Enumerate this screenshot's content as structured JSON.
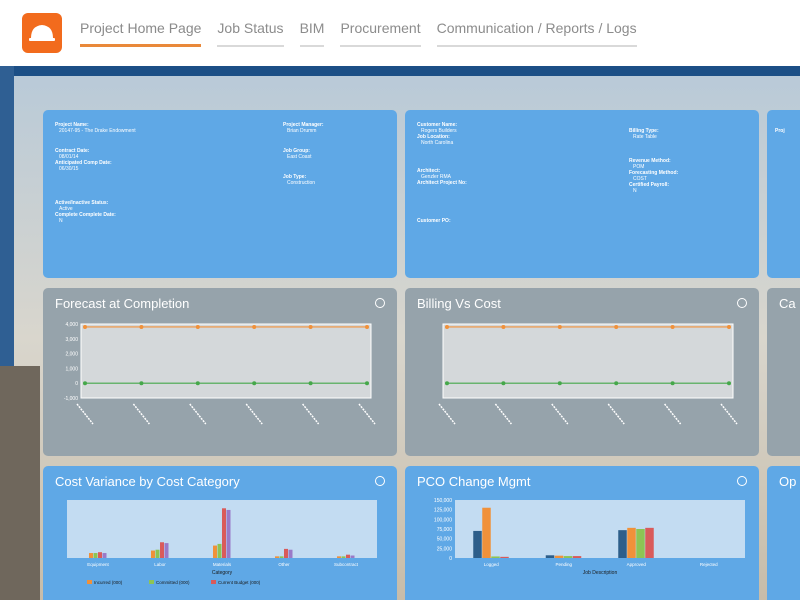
{
  "nav": {
    "logo_icon": "hard-hat-icon",
    "tabs": [
      "Project Home Page",
      "Job Status",
      "BIM",
      "Procurement",
      "Communication / Reports / Logs"
    ],
    "active_index": 0,
    "accent": "#e9893a"
  },
  "project_info": {
    "project_name_label": "Project Name:",
    "project_name_value": "20147-95 - The Drake Endowment",
    "contract_date_label": "Contract Date:",
    "contract_date_value": "08/01/14",
    "anticipated_label": "Anticipated Comp Date:",
    "anticipated_value": "06/30/15",
    "active_status_label": "Active/Inactive Status:",
    "active_status_value": "Active",
    "complete_date_label": "Complete Complete Date:",
    "complete_date_value": "N",
    "pm_label": "Project Manager:",
    "pm_value": "Brian Drumm",
    "job_group_label": "Job Group:",
    "job_group_value": "East Coast",
    "job_type_label": "Job Type:",
    "job_type_value": "Construction"
  },
  "customer_info": {
    "customer_name_label": "Customer Name:",
    "customer_name_value": "Rogers Builders",
    "job_location_label": "Job Location:",
    "job_location_value": "North Carolina",
    "architect_label": "Architect:",
    "architect_value": "Genzler RMA",
    "architect_project_label": "Architect Project No:",
    "customer_po_label": "Customer PO:",
    "billing_type_label": "Billing Type:",
    "billing_type_value": "Rate Table",
    "revenue_method_label": "Revenue Method:",
    "revenue_method_value": "POM",
    "forecasting_label": "Forecasting Method:",
    "forecasting_value": "COST",
    "certified_label": "Certified Payroll:",
    "certified_value": "N",
    "partial_label": "Proj"
  },
  "charts": {
    "forecast": {
      "title": "Forecast at Completion"
    },
    "billing": {
      "title": "Billing Vs Cost"
    },
    "partial_top_title": "Ca",
    "cost_variance": {
      "title": "Cost Variance by Cost Category"
    },
    "pco": {
      "title": "PCO Change Mgmt"
    },
    "partial_bottom_title": "Op"
  },
  "chart_data": [
    {
      "type": "line",
      "title": "Forecast at Completion",
      "y_ticks": [
        "4,000",
        "3,000",
        "2,000",
        "1,000",
        "0",
        "-1,000"
      ],
      "x_count": 6,
      "ylim": [
        -1000,
        4000
      ],
      "series": [
        {
          "color": "#f0913a",
          "values": [
            3800,
            3800,
            3800,
            3800,
            3800,
            3800
          ]
        },
        {
          "color": "#45a84a",
          "values": [
            0,
            0,
            0,
            0,
            0,
            0
          ]
        }
      ]
    },
    {
      "type": "line",
      "title": "Billing Vs Cost",
      "x_count": 6,
      "ylim": [
        -100,
        400
      ],
      "series": [
        {
          "color": "#f0913a",
          "values": [
            380,
            380,
            380,
            380,
            380,
            380
          ]
        },
        {
          "color": "#45a84a",
          "values": [
            0,
            0,
            0,
            0,
            0,
            0
          ]
        }
      ]
    },
    {
      "type": "bar",
      "title": "Cost Variance by Cost Category",
      "xlabel": "Category",
      "categories": [
        "Equipment",
        "Labor",
        "Materials",
        "Other",
        "Subcontract"
      ],
      "ylim": [
        0,
        70
      ],
      "series": [
        {
          "name": "Incurred (000)",
          "color": "#f0913a",
          "values": [
            6,
            9,
            15,
            2,
            2
          ]
        },
        {
          "name": "Committed (000)",
          "color": "#8dc454",
          "values": [
            6,
            10,
            17,
            2,
            2
          ]
        },
        {
          "name": "Current Budget (000)",
          "color": "#d95b5b",
          "values": [
            7,
            19,
            60,
            11,
            4
          ]
        },
        {
          "color": "#9a7ac8",
          "values": [
            6,
            18,
            58,
            10,
            3
          ]
        }
      ]
    },
    {
      "type": "bar",
      "title": "PCO Change Mgmt",
      "xlabel": "Job Description",
      "y_ticks": [
        "150,000",
        "125,000",
        "100,000",
        "75,000",
        "50,000",
        "25,000",
        "0"
      ],
      "categories": [
        "Logged",
        "Pending",
        "Approved",
        "Rejected"
      ],
      "ylim": [
        0,
        150000
      ],
      "series": [
        {
          "color": "#2d5e8a",
          "values": [
            70000,
            7000,
            72000,
            0
          ]
        },
        {
          "color": "#f0913a",
          "values": [
            130000,
            6000,
            78000,
            0
          ]
        },
        {
          "color": "#8dc454",
          "values": [
            4000,
            5000,
            75000,
            0
          ]
        },
        {
          "color": "#d95b5b",
          "values": [
            3000,
            5000,
            78000,
            0
          ]
        }
      ]
    }
  ]
}
